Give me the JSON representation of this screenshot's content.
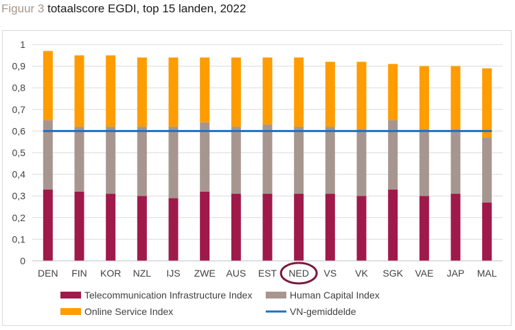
{
  "caption": {
    "label": "Figuur 3",
    "text": "totaalscore EGDI, top 15 landen, 2022"
  },
  "chart_data": {
    "type": "bar",
    "stacked": true,
    "categories": [
      "DEN",
      "FIN",
      "KOR",
      "NZL",
      "IJS",
      "ZWE",
      "AUS",
      "EST",
      "NED",
      "VS",
      "VK",
      "SGK",
      "VAE",
      "JAP",
      "MAL"
    ],
    "highlight_category": "NED",
    "ylim": [
      0,
      1
    ],
    "yticks": [
      "0",
      "0,1",
      "0,2",
      "0,3",
      "0,4",
      "0,5",
      "0,6",
      "0,7",
      "0,8",
      "0,9",
      "1"
    ],
    "grid": true,
    "legend_position": "bottom",
    "series": [
      {
        "name": "Telecommunication Infrastructure Index",
        "color": "#a0194b",
        "values": [
          0.33,
          0.32,
          0.31,
          0.3,
          0.29,
          0.32,
          0.31,
          0.31,
          0.31,
          0.31,
          0.3,
          0.33,
          0.3,
          0.31,
          0.27
        ]
      },
      {
        "name": "Human Capital Index",
        "color": "#a7968f",
        "values": [
          0.32,
          0.3,
          0.31,
          0.32,
          0.33,
          0.32,
          0.31,
          0.32,
          0.31,
          0.31,
          0.31,
          0.32,
          0.31,
          0.3,
          0.3
        ]
      },
      {
        "name": "Online Service Index",
        "color": "#ff9c00",
        "values": [
          0.32,
          0.33,
          0.33,
          0.32,
          0.32,
          0.3,
          0.32,
          0.31,
          0.32,
          0.3,
          0.31,
          0.26,
          0.29,
          0.29,
          0.32
        ]
      }
    ],
    "reference_line": {
      "name": "VN-gemiddelde",
      "value": 0.6,
      "color": "#1f6fc0"
    }
  }
}
